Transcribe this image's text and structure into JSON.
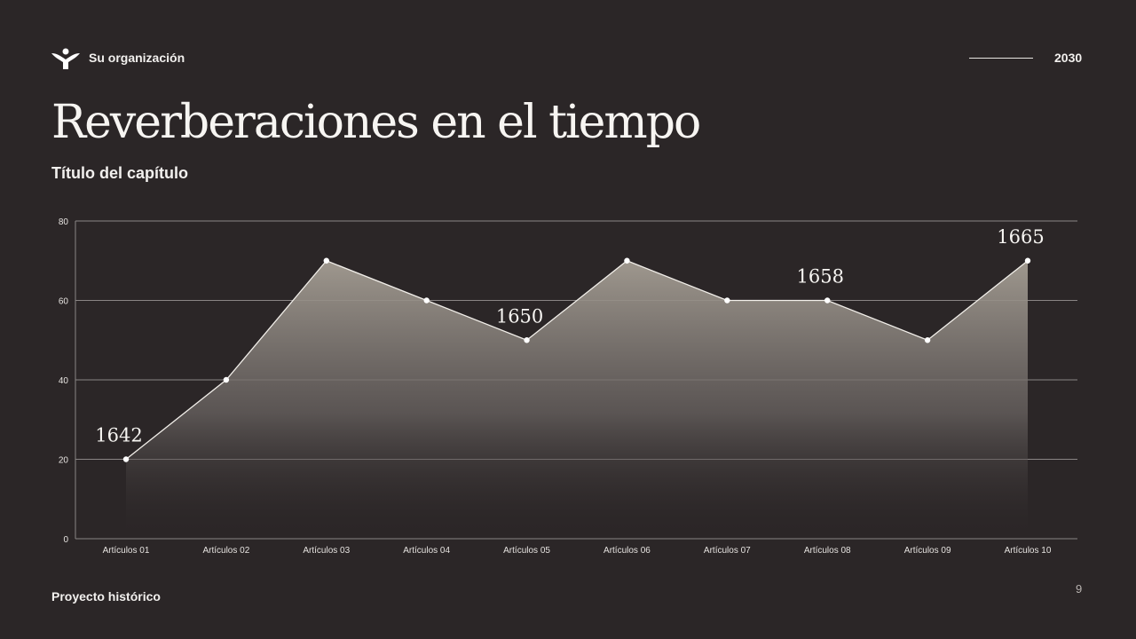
{
  "header": {
    "org_name": "Su organización",
    "year": "2030"
  },
  "title": "Reverberaciones en el tiempo",
  "subtitle": "Título del capítulo",
  "footer": {
    "project": "Proyecto histórico",
    "page_number": "9"
  },
  "colors": {
    "background": "#2b2627",
    "line": "#f2efea",
    "area_top": "#a59e94"
  },
  "chart_data": {
    "type": "area",
    "categories": [
      "Artículos 01",
      "Artículos 02",
      "Artículos 03",
      "Artículos 04",
      "Artículos 05",
      "Artículos 06",
      "Artículos 07",
      "Artículos 08",
      "Artículos 09",
      "Artículos 10"
    ],
    "values": [
      20,
      40,
      70,
      60,
      50,
      70,
      60,
      60,
      50,
      70
    ],
    "annotations": [
      {
        "category": "Artículos 01",
        "text": "1642"
      },
      {
        "category": "Artículos 05",
        "text": "1650"
      },
      {
        "category": "Artículos 08",
        "text": "1658"
      },
      {
        "category": "Artículos 10",
        "text": "1665"
      }
    ],
    "ylim": [
      0,
      80
    ],
    "yticks": [
      0,
      20,
      40,
      60,
      80
    ],
    "grid": true,
    "title": "",
    "xlabel": "",
    "ylabel": ""
  }
}
